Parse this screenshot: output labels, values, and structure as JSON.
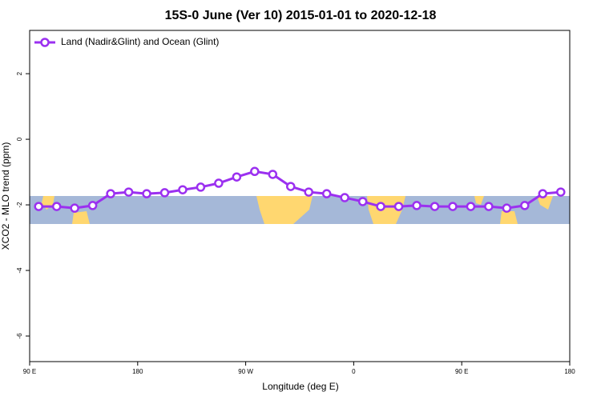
{
  "chart_data": {
    "type": "line",
    "title": "15S-0 June (Ver 10)   2015-01-01 to 2020-12-18",
    "x_label": "Longitude (deg E)",
    "y_label": "XCO2 - MLO trend (ppm)",
    "x": [
      97.5,
      112.5,
      127.5,
      142.5,
      157.5,
      172.5,
      187.5,
      202.5,
      217.5,
      232.5,
      247.5,
      262.5,
      277.5,
      292.5,
      307.5,
      322.5,
      337.5,
      352.5,
      367.5,
      382.5,
      397.5,
      412.5,
      427.5,
      442.5,
      457.5,
      472.5,
      487.5,
      502.5,
      517.5,
      532.5
    ],
    "series": [
      {
        "name": "Land (Nadir&Glint) and Ocean (Glint)",
        "color": "#9b30f0",
        "values": [
          -2.05,
          -2.05,
          -2.1,
          -2.02,
          -1.66,
          -1.61,
          -1.66,
          -1.63,
          -1.54,
          -1.46,
          -1.34,
          -1.15,
          -0.98,
          -1.07,
          -1.44,
          -1.61,
          -1.66,
          -1.78,
          -1.9,
          -2.05,
          -2.05,
          -2.02,
          -2.05,
          -2.05,
          -2.05,
          -2.05,
          -2.1,
          -2.02,
          -1.66,
          -1.61
        ]
      }
    ],
    "xlim": [
      90,
      540
    ],
    "ylim": [
      -6.78,
      3.32
    ],
    "xticks": [
      {
        "value": 90,
        "label": "90 E"
      },
      {
        "value": 180,
        "label": "180"
      },
      {
        "value": 270,
        "label": "90 W"
      },
      {
        "value": 360,
        "label": "0"
      },
      {
        "value": 450,
        "label": "90 E"
      },
      {
        "value": 540,
        "label": "180"
      }
    ],
    "yticks": [
      -6,
      -4,
      -2,
      0,
      2
    ],
    "legend": "top-left"
  }
}
